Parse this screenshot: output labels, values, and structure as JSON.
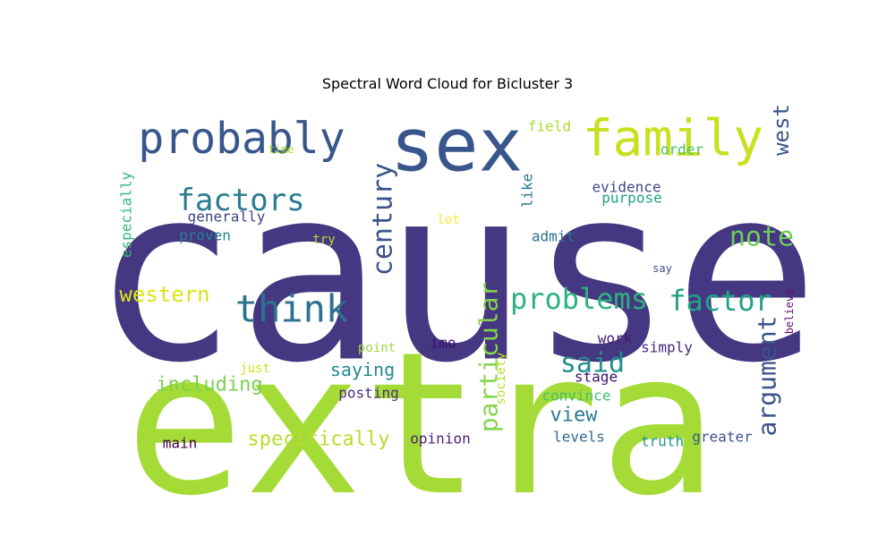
{
  "chart_data": {
    "type": "wordcloud",
    "title": "Spectral Word Cloud for Bicluster 3",
    "colormap": "viridis",
    "background": "#ffffff",
    "words": [
      {
        "text": "cause",
        "color": "#453781",
        "rotated": false
      },
      {
        "text": "extra",
        "color": "#a5db36",
        "rotated": false
      },
      {
        "text": "sex",
        "color": "#39568c",
        "rotated": false
      },
      {
        "text": "family",
        "color": "#c8e020",
        "rotated": false
      },
      {
        "text": "probably",
        "color": "#39568c",
        "rotated": false
      },
      {
        "text": "think",
        "color": "#2c728e",
        "rotated": false
      },
      {
        "text": "factors",
        "color": "#287c8e",
        "rotated": false
      },
      {
        "text": "century",
        "color": "#3b528b",
        "rotated": true
      },
      {
        "text": "problems",
        "color": "#2db27d",
        "rotated": false
      },
      {
        "text": "factor",
        "color": "#20a386",
        "rotated": false
      },
      {
        "text": "note",
        "color": "#6ece58",
        "rotated": false
      },
      {
        "text": "particular",
        "color": "#84d44b",
        "rotated": true
      },
      {
        "text": "argument",
        "color": "#3b528b",
        "rotated": true
      },
      {
        "text": "said",
        "color": "#228d8d",
        "rotated": false
      },
      {
        "text": "western",
        "color": "#dde318",
        "rotated": false
      },
      {
        "text": "west",
        "color": "#39568c",
        "rotated": true
      },
      {
        "text": "specifically",
        "color": "#b5de2b",
        "rotated": false
      },
      {
        "text": "including",
        "color": "#7ad151",
        "rotated": false
      },
      {
        "text": "view",
        "color": "#2a788e",
        "rotated": false
      },
      {
        "text": "saying",
        "color": "#23888e",
        "rotated": false
      },
      {
        "text": "evidence",
        "color": "#3e4989",
        "rotated": false
      },
      {
        "text": "purpose",
        "color": "#1fa188",
        "rotated": false
      },
      {
        "text": "generally",
        "color": "#414487",
        "rotated": false
      },
      {
        "text": "proven",
        "color": "#26828e",
        "rotated": false
      },
      {
        "text": "admit",
        "color": "#2c728e",
        "rotated": false
      },
      {
        "text": "field",
        "color": "#addc30",
        "rotated": false
      },
      {
        "text": "order",
        "color": "#4ac16d",
        "rotated": false
      },
      {
        "text": "especially",
        "color": "#35b779",
        "rotated": true
      },
      {
        "text": "like",
        "color": "#2a788e",
        "rotated": true
      },
      {
        "text": "opinion",
        "color": "#481f70",
        "rotated": false
      },
      {
        "text": "main",
        "color": "#440154",
        "rotated": false
      },
      {
        "text": "posting",
        "color": "#472d7b",
        "rotated": false
      },
      {
        "text": "imo",
        "color": "#3b0f70",
        "rotated": false
      },
      {
        "text": "simply",
        "color": "#482878",
        "rotated": false
      },
      {
        "text": "work",
        "color": "#481a6c",
        "rotated": false
      },
      {
        "text": "stage",
        "color": "#3a0f6e",
        "rotated": false
      },
      {
        "text": "convince",
        "color": "#44bf70",
        "rotated": false
      },
      {
        "text": "levels",
        "color": "#31688e",
        "rotated": false
      },
      {
        "text": "truth",
        "color": "#1f988b",
        "rotated": false
      },
      {
        "text": "greater",
        "color": "#3b528b",
        "rotated": false
      },
      {
        "text": "society",
        "color": "#b8de29",
        "rotated": true
      },
      {
        "text": "just",
        "color": "#d0e11c",
        "rotated": false
      },
      {
        "text": "point",
        "color": "#9fda3a",
        "rotated": false
      },
      {
        "text": "try",
        "color": "#b5de2b",
        "rotated": false
      },
      {
        "text": "lot",
        "color": "#fde725",
        "rotated": false
      },
      {
        "text": "time",
        "color": "#b5de2b",
        "rotated": false
      },
      {
        "text": "say",
        "color": "#3e4989",
        "rotated": false
      },
      {
        "text": "believe",
        "color": "#5c126e",
        "rotated": true
      }
    ]
  }
}
